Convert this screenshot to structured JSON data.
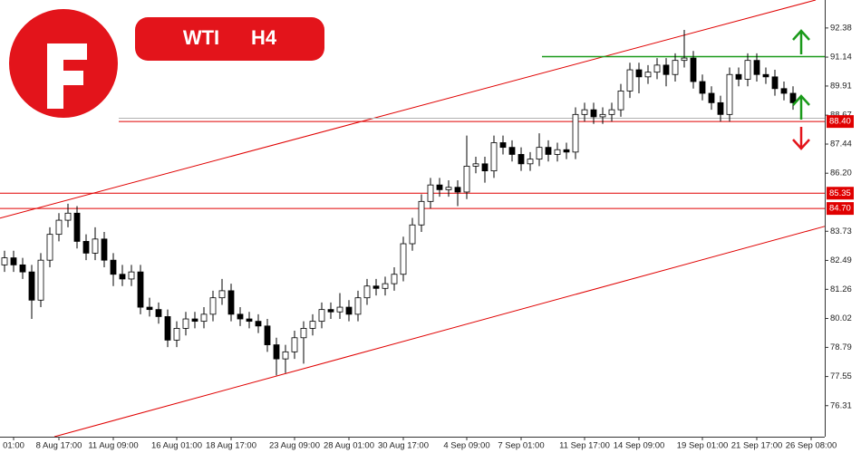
{
  "chart_data": {
    "type": "candlestick",
    "symbol": "WTI",
    "timeframe": "H4",
    "ylim": [
      74.99,
      93.57
    ],
    "xlim": [
      -0.5,
      90.5
    ],
    "yticks": [
      92.38,
      91.14,
      89.91,
      88.67,
      87.44,
      {
        "value": 86.2,
        "label": "86.20"
      },
      83.73,
      82.49,
      81.26,
      80.02,
      78.79,
      77.55,
      76.31
    ],
    "xticks": [
      {
        "value": 1,
        "label": "01:00"
      },
      {
        "value": 6,
        "label": "8 Aug 17:00"
      },
      {
        "value": 12,
        "label": "11 Aug 09:00"
      },
      {
        "value": 19,
        "label": "16 Aug 01:00"
      },
      {
        "value": 25,
        "label": "18 Aug 17:00"
      },
      {
        "value": 32,
        "label": "23 Aug 09:00"
      },
      {
        "value": 38,
        "label": "28 Aug 01:00"
      },
      {
        "value": 44,
        "label": "30 Aug 17:00"
      },
      {
        "value": 51,
        "label": "4 Sep 09:00"
      },
      {
        "value": 57,
        "label": "7 Sep 01:00"
      },
      {
        "value": 64,
        "label": "11 Sep 17:00"
      },
      {
        "value": 70,
        "label": "14 Sep 09:00"
      },
      {
        "value": 77,
        "label": "19 Sep 01:00"
      },
      {
        "value": 83,
        "label": "21 Sep 17:00"
      },
      {
        "value": 89,
        "label": "26 Sep 08:00"
      }
    ],
    "up_color": "#ffffff",
    "down_color": "#000000",
    "ohlc": [
      [
        82.3,
        82.9,
        82.0,
        82.6
      ],
      [
        82.6,
        82.9,
        82.0,
        82.3
      ],
      [
        82.3,
        82.6,
        81.7,
        82.0
      ],
      [
        82.0,
        82.3,
        80.0,
        80.8
      ],
      [
        80.8,
        82.8,
        80.5,
        82.5
      ],
      [
        82.5,
        83.9,
        82.2,
        83.6
      ],
      [
        83.6,
        84.5,
        83.3,
        84.2
      ],
      [
        84.2,
        84.9,
        83.9,
        84.5
      ],
      [
        84.5,
        84.8,
        83.0,
        83.3
      ],
      [
        83.3,
        83.6,
        82.5,
        82.8
      ],
      [
        82.8,
        83.9,
        82.5,
        83.4
      ],
      [
        83.4,
        83.7,
        82.2,
        82.5
      ],
      [
        82.5,
        82.8,
        81.4,
        81.9
      ],
      [
        81.9,
        82.3,
        81.4,
        81.7
      ],
      [
        81.7,
        82.3,
        81.4,
        82.0
      ],
      [
        82.0,
        82.3,
        80.2,
        80.5
      ],
      [
        80.5,
        80.9,
        80.1,
        80.4
      ],
      [
        80.4,
        80.7,
        79.8,
        80.1
      ],
      [
        80.1,
        80.4,
        78.8,
        79.1
      ],
      [
        79.1,
        79.9,
        78.8,
        79.6
      ],
      [
        79.6,
        80.3,
        79.3,
        80.0
      ],
      [
        80.0,
        80.3,
        79.6,
        79.9
      ],
      [
        79.9,
        80.5,
        79.6,
        80.2
      ],
      [
        80.2,
        81.2,
        79.9,
        80.9
      ],
      [
        80.9,
        81.7,
        80.6,
        81.2
      ],
      [
        81.2,
        81.5,
        79.9,
        80.2
      ],
      [
        80.2,
        80.5,
        79.7,
        80.0
      ],
      [
        80.0,
        80.3,
        79.6,
        79.9
      ],
      [
        79.9,
        80.2,
        79.4,
        79.7
      ],
      [
        79.7,
        80.0,
        78.6,
        78.9
      ],
      [
        78.9,
        79.2,
        77.6,
        78.3
      ],
      [
        78.3,
        78.9,
        77.7,
        78.6
      ],
      [
        78.6,
        79.5,
        78.3,
        79.2
      ],
      [
        79.2,
        79.9,
        78.1,
        79.6
      ],
      [
        79.6,
        80.2,
        79.3,
        79.9
      ],
      [
        79.9,
        80.7,
        79.6,
        80.4
      ],
      [
        80.4,
        80.7,
        80.0,
        80.3
      ],
      [
        80.3,
        81.1,
        80.0,
        80.5
      ],
      [
        80.5,
        80.8,
        79.9,
        80.2
      ],
      [
        80.2,
        81.2,
        79.9,
        80.9
      ],
      [
        80.9,
        81.7,
        80.6,
        81.4
      ],
      [
        81.4,
        81.7,
        81.0,
        81.3
      ],
      [
        81.3,
        81.8,
        81.0,
        81.5
      ],
      [
        81.5,
        82.2,
        81.2,
        81.9
      ],
      [
        81.9,
        83.5,
        81.6,
        83.2
      ],
      [
        83.2,
        84.3,
        82.9,
        84.0
      ],
      [
        84.0,
        85.3,
        83.7,
        85.0
      ],
      [
        85.0,
        86.0,
        84.7,
        85.7
      ],
      [
        85.7,
        86.0,
        85.2,
        85.5
      ],
      [
        85.5,
        85.9,
        85.2,
        85.6
      ],
      [
        85.6,
        85.9,
        84.8,
        85.4
      ],
      [
        85.4,
        87.8,
        85.1,
        86.5
      ],
      [
        86.5,
        86.9,
        86.2,
        86.6
      ],
      [
        86.6,
        86.9,
        85.8,
        86.3
      ],
      [
        86.3,
        87.8,
        86.0,
        87.5
      ],
      [
        87.5,
        87.8,
        87.0,
        87.3
      ],
      [
        87.3,
        87.6,
        86.7,
        87.0
      ],
      [
        87.0,
        87.3,
        86.3,
        86.6
      ],
      [
        86.6,
        87.1,
        86.3,
        86.8
      ],
      [
        86.8,
        87.9,
        86.5,
        87.3
      ],
      [
        87.3,
        87.6,
        86.7,
        87.0
      ],
      [
        87.0,
        87.5,
        86.7,
        87.2
      ],
      [
        87.2,
        87.5,
        86.8,
        87.1
      ],
      [
        87.1,
        89.0,
        86.8,
        88.7
      ],
      [
        88.7,
        89.2,
        88.4,
        88.9
      ],
      [
        88.9,
        89.2,
        88.3,
        88.6
      ],
      [
        88.6,
        89.0,
        88.3,
        88.7
      ],
      [
        88.7,
        89.2,
        88.4,
        88.9
      ],
      [
        88.9,
        90.0,
        88.6,
        89.7
      ],
      [
        89.7,
        90.9,
        89.4,
        90.6
      ],
      [
        90.6,
        90.9,
        89.6,
        90.3
      ],
      [
        90.3,
        90.8,
        90.0,
        90.5
      ],
      [
        90.5,
        91.1,
        90.2,
        90.8
      ],
      [
        90.8,
        91.1,
        89.9,
        90.4
      ],
      [
        90.4,
        91.3,
        90.1,
        91.0
      ],
      [
        91.0,
        92.3,
        90.7,
        91.1
      ],
      [
        91.1,
        91.4,
        89.8,
        90.1
      ],
      [
        90.1,
        90.4,
        89.3,
        89.6
      ],
      [
        89.6,
        89.9,
        88.9,
        89.2
      ],
      [
        89.2,
        89.5,
        88.4,
        88.7
      ],
      [
        88.7,
        90.7,
        88.4,
        90.4
      ],
      [
        90.4,
        90.7,
        89.9,
        90.2
      ],
      [
        90.2,
        91.3,
        89.9,
        91.0
      ],
      [
        91.0,
        91.3,
        90.1,
        90.4
      ],
      [
        90.4,
        90.7,
        90.0,
        90.3
      ],
      [
        90.3,
        90.6,
        89.5,
        89.8
      ],
      [
        89.8,
        90.1,
        89.3,
        89.6
      ],
      [
        89.6,
        89.9,
        88.9,
        89.2
      ]
    ],
    "levels": [
      {
        "value": {
          "value": 88.4,
          "label": "88.40"
        },
        "start": 12.6,
        "color": "#e00000"
      },
      {
        "value": {
          "value": 85.35,
          "label": "85.35"
        },
        "start": -0.5,
        "color": "#e00000"
      },
      {
        "value": {
          "value": 84.7,
          "label": "84.70"
        },
        "start": -0.5,
        "color": "#e00000"
      },
      {
        "value": 88.54,
        "start": 12.6,
        "color": "#b0b0b0"
      },
      {
        "value": 91.16,
        "start": 59.3,
        "color": "#1a9a1a"
      }
    ],
    "trendlines": [
      {
        "x": [
          -0.5,
          89.5
        ],
        "y": [
          84.29,
          93.57
        ],
        "color": "#e00000"
      },
      {
        "x": [
          5.5,
          90.5
        ],
        "y": [
          74.99,
          83.94
        ],
        "color": "#e00000"
      }
    ]
  }
}
